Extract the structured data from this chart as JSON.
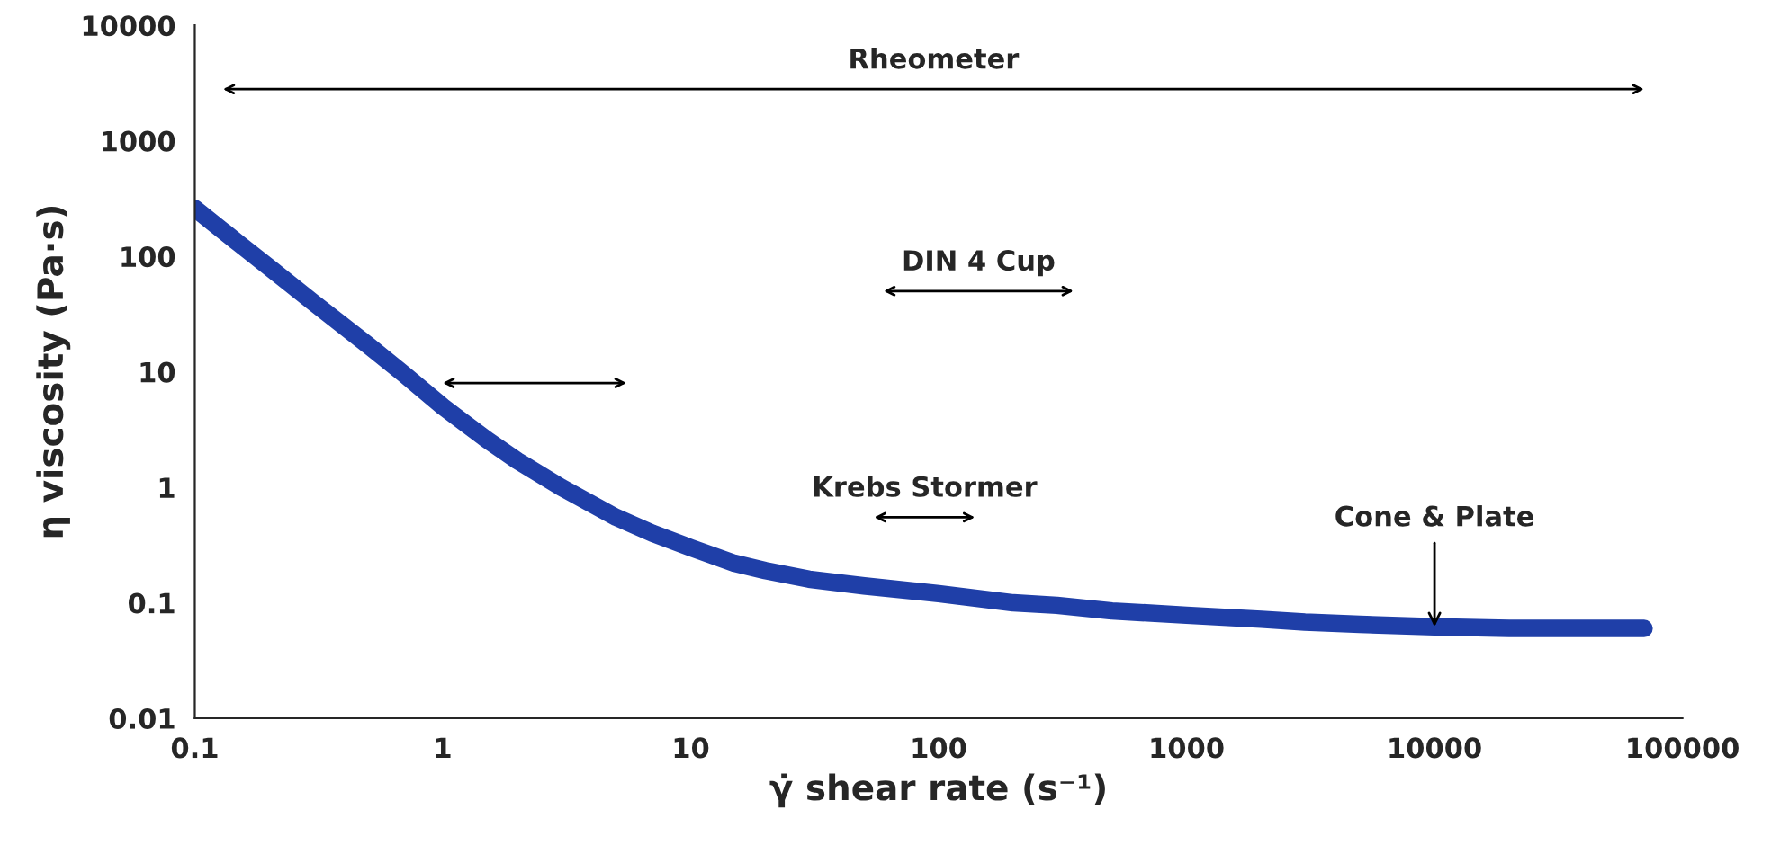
{
  "chart_data": {
    "type": "line",
    "xlabel": "γ̇ shear rate (s⁻¹)",
    "ylabel": "η viscosity (Pa·s)",
    "log": "xy",
    "grid": false,
    "marker": "none",
    "line_style": "solid",
    "series": [
      {
        "color": "#1f3fa8",
        "x": [
          0.1,
          0.15,
          0.2,
          0.3,
          0.5,
          0.7,
          1,
          1.5,
          2,
          3,
          5,
          7,
          10,
          15,
          20,
          30,
          50,
          100,
          200,
          300,
          500,
          1000,
          2000,
          3000,
          5000,
          10000,
          20000,
          70000
        ],
        "values": [
          260,
          130,
          80,
          40,
          17,
          9.5,
          5,
          2.6,
          1.7,
          1.0,
          0.55,
          0.4,
          0.3,
          0.22,
          0.19,
          0.16,
          0.14,
          0.12,
          0.1,
          0.095,
          0.085,
          0.078,
          0.072,
          0.068,
          0.065,
          0.062,
          0.06,
          0.06
        ]
      },
      {
        "name": "Rheometer",
        "color": "#000000",
        "x": [
          0.13,
          70000
        ],
        "values": [
          2800,
          2800
        ]
      },
      {
        "name": "DIN 4 Cup",
        "color": "#000000",
        "x": [
          60,
          350
        ],
        "values": [
          50,
          50
        ]
      },
      {
        "color": "#000000",
        "x": [
          1,
          5.5
        ],
        "values": [
          8,
          8
        ]
      },
      {
        "name": "Krebs Stormer",
        "color": "#000000",
        "x": [
          55,
          140
        ],
        "values": [
          0.55,
          0.55
        ]
      }
    ],
    "xlim": [
      0.1,
      100000
    ],
    "ylim": [
      0.01,
      10000
    ],
    "xticks": [
      {
        "value": 0.1,
        "label": "0.1"
      },
      1,
      10,
      100,
      1000,
      10000,
      100000
    ],
    "yticks": [
      {
        "value": 0.01,
        "label": "0.01"
      },
      {
        "value": 0.1,
        "label": "0.1"
      },
      1,
      10,
      100,
      1000,
      10000
    ],
    "annotations": [
      {
        "text": "Cone & Plate",
        "x": 10000,
        "y": 0.062
      }
    ]
  }
}
